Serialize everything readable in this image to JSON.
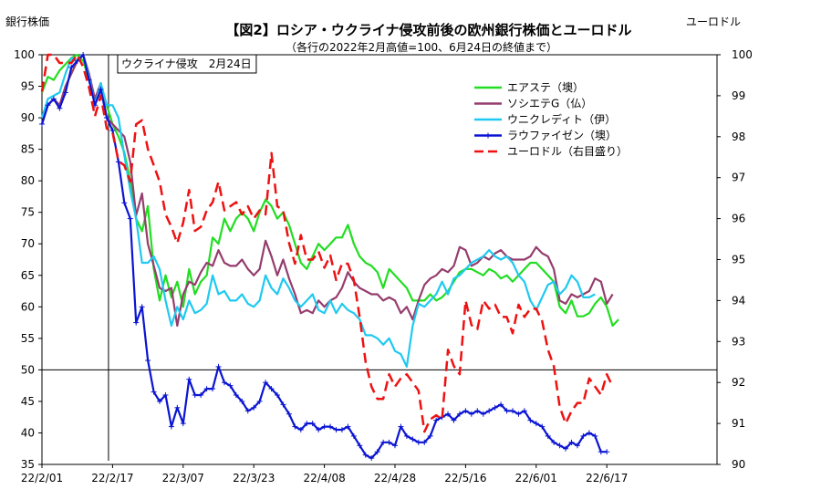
{
  "chart_data": {
    "type": "line",
    "title": "【図2】ロシア・ウクライナ侵攻前後の欧州銀行株価とユーロドル",
    "subtitle": "（各行の2022年2月高値=100、6月24日の終値まで）",
    "ylabel": "銀行株価",
    "y2label": "ユーロドル",
    "ylim": [
      35,
      100
    ],
    "y2lim": [
      90,
      100
    ],
    "yticks": [
      "35",
      "40",
      "45",
      "50",
      "55",
      "60",
      "65",
      "70",
      "75",
      "80",
      "85",
      "90",
      "95",
      "100"
    ],
    "y2ticks": [
      "90",
      "91",
      "92",
      "93",
      "94",
      "95",
      "96",
      "97",
      "98",
      "99",
      "100"
    ],
    "xticks": [
      "22/2/01",
      "22/2/17",
      "22/3/07",
      "22/3/23",
      "22/4/08",
      "22/4/28",
      "22/5/16",
      "22/6/01",
      "22/6/17"
    ],
    "xtick_index": [
      0,
      12,
      24,
      36,
      48,
      60,
      72,
      84,
      96
    ],
    "annotation": "ウクライナ侵攻　2月24日",
    "annotation_index": 11,
    "reference_line": 50,
    "legend_position": "top-right",
    "grid": false,
    "series": [
      {
        "name": "エアステ（墺）",
        "color": "#22dd22",
        "dash": false,
        "markers": false,
        "axis": "left",
        "values": [
          94,
          96.5,
          96,
          97.5,
          98.5,
          99.5,
          100,
          99,
          96,
          93,
          95,
          92,
          89,
          87,
          84.5,
          80,
          74,
          72,
          76,
          66,
          61,
          65,
          61.5,
          64,
          60,
          66,
          62,
          64,
          65,
          71,
          70,
          74,
          72,
          74,
          75,
          74,
          72,
          75,
          77,
          76,
          74,
          75,
          73,
          70,
          67,
          66,
          68,
          70,
          69,
          70,
          71,
          71,
          73,
          70,
          68,
          67,
          66.5,
          65.5,
          63,
          66,
          65,
          64,
          63,
          61,
          61,
          61,
          62,
          61,
          61.5,
          62.5,
          64,
          65.5,
          66,
          66,
          65.5,
          65,
          66,
          65.5,
          64.5,
          65,
          64,
          65,
          66,
          67,
          67,
          66,
          65,
          64,
          60,
          59,
          61,
          58.5,
          58.5,
          59,
          60.5,
          61.5,
          60,
          57,
          58
        ]
      },
      {
        "name": "ソシエテG（仏）",
        "color": "#953d6d",
        "dash": false,
        "markers": false,
        "axis": "left",
        "values": [
          89,
          92,
          93,
          92,
          95,
          97,
          99,
          100,
          97,
          93,
          95.5,
          90,
          89,
          88,
          87,
          83,
          74.5,
          78,
          70,
          66.5,
          63,
          62.5,
          63,
          57,
          62,
          64,
          63.5,
          65.5,
          67,
          66.5,
          69,
          67,
          66.5,
          66.5,
          67.5,
          66,
          65,
          66,
          70.5,
          68,
          65,
          67.5,
          64.5,
          62,
          59,
          59.5,
          59,
          61,
          60,
          61,
          61.5,
          63,
          65.5,
          64,
          63,
          62.5,
          62,
          62,
          61,
          61.5,
          61,
          59,
          60,
          58,
          61,
          63.5,
          64.5,
          65,
          66,
          65.5,
          66.5,
          69.5,
          69,
          66.5,
          67,
          68,
          67.5,
          68.5,
          69,
          68,
          67.5,
          67.5,
          67.5,
          68,
          69.5,
          68.5,
          68,
          66,
          61,
          60.5,
          62,
          61.5,
          62,
          62.5,
          64.5,
          64,
          60.5,
          62
        ]
      },
      {
        "name": "ウニクレディト（伊）",
        "color": "#1fc9f0",
        "dash": false,
        "markers": false,
        "axis": "left",
        "values": [
          90,
          93,
          93.5,
          94,
          97,
          99.5,
          99,
          100,
          96.5,
          92,
          95.5,
          92,
          92,
          90,
          84,
          78.5,
          74,
          67,
          67,
          68,
          66,
          61,
          57,
          60,
          58,
          61,
          59,
          59.5,
          60.5,
          65,
          62,
          62.5,
          61,
          61,
          62,
          60.5,
          60,
          61,
          65,
          63,
          62,
          64.5,
          63,
          61,
          60,
          61,
          62,
          59.5,
          59,
          61,
          59,
          60.5,
          59.5,
          59,
          58,
          55.5,
          55.5,
          55,
          54,
          55,
          53,
          52.5,
          50.5,
          57,
          60.5,
          60,
          61,
          62,
          64,
          62,
          64.5,
          65,
          66,
          67,
          67.5,
          68,
          69,
          68,
          67.5,
          68,
          67,
          65,
          64,
          61,
          59.5,
          61.5,
          63.5,
          64,
          62,
          63,
          65,
          64,
          61.5,
          61.5,
          62
        ]
      },
      {
        "name": "ラウファイゼン（墺）",
        "color": "#0a14d2",
        "dash": false,
        "markers": true,
        "axis": "left",
        "values": [
          89,
          92,
          93,
          91.5,
          94,
          98,
          99,
          100,
          96,
          92,
          94.5,
          90,
          88,
          83,
          76.5,
          74,
          57.5,
          60,
          51.5,
          46.5,
          45,
          46,
          41,
          44,
          41.5,
          48.5,
          46,
          46,
          47,
          47,
          50.5,
          48,
          47.5,
          46,
          45,
          43.5,
          44,
          45,
          48,
          47,
          46,
          44.5,
          43,
          41,
          40.5,
          41.5,
          41.5,
          40.5,
          41,
          41,
          40.5,
          40.5,
          41,
          39.5,
          38,
          36.5,
          36,
          37,
          38.5,
          38.5,
          38,
          41,
          39.5,
          39,
          38.5,
          38.5,
          39.5,
          42,
          42.5,
          43,
          42,
          43,
          43.5,
          43,
          43.5,
          43,
          43.5,
          44,
          44.5,
          43.5,
          43.5,
          43,
          43.5,
          42,
          41.5,
          41,
          39.5,
          38.5,
          38,
          37.5,
          38.5,
          38,
          39.5,
          40,
          39.5,
          37,
          37
        ]
      },
      {
        "name": "ユーロドル（右目盛り）",
        "color": "#ee1111",
        "dash": true,
        "markers": false,
        "axis": "right",
        "values": [
          99.1,
          100,
          100,
          99.8,
          99.8,
          99.8,
          100,
          99.7,
          99.2,
          98.5,
          99,
          98.2,
          98.1,
          97.4,
          97.3,
          96.9,
          98.3,
          98.4,
          97.7,
          97.3,
          96.9,
          96.1,
          95.8,
          95.4,
          95.9,
          96.7,
          95.7,
          95.8,
          96.2,
          96.4,
          96.9,
          96.2,
          96.3,
          96.4,
          96.1,
          96.3,
          96,
          96.2,
          96.1,
          97.6,
          96.3,
          96.2,
          95.4,
          94.9,
          95.6,
          95,
          95,
          95.2,
          94.8,
          95.1,
          94.5,
          94.9,
          94.9,
          94.5,
          93.6,
          92.5,
          91.9,
          91.6,
          91.6,
          92.2,
          91.9,
          92.1,
          92.2,
          92,
          91.8,
          90.8,
          91.1,
          91.2,
          91.1,
          92.8,
          92.4,
          92.2,
          94,
          93.4,
          93.3,
          94,
          93.8,
          93.9,
          93.6,
          93.6,
          93.2,
          93.9,
          93.6,
          93.8,
          93.8,
          93.5,
          92.8,
          92.4,
          91.4,
          91,
          91.3,
          91.5,
          91.5,
          92.1,
          91.9,
          91.7,
          92.2,
          91.9
        ]
      }
    ]
  }
}
